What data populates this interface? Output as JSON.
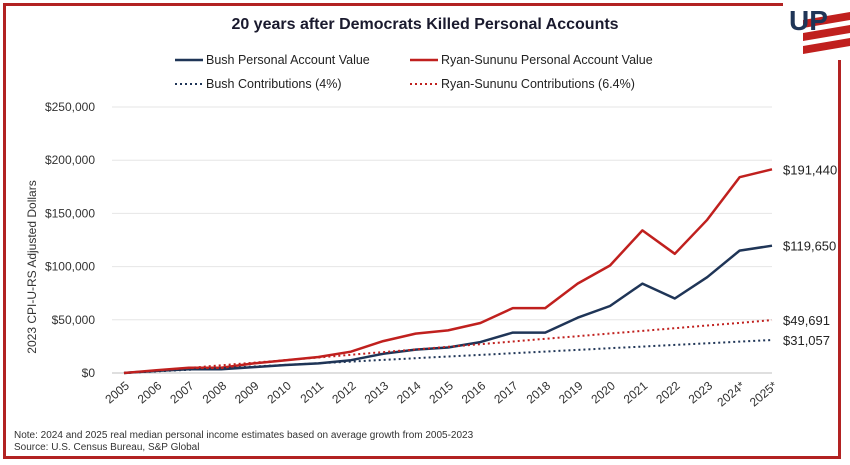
{
  "chart_data": {
    "type": "line",
    "title": "20 years after Democrats Killed Personal Accounts",
    "ylabel": "2023 CPI-U-RS Adjusted Dollars",
    "xlabel": "",
    "categories": [
      "2005",
      "2006",
      "2007",
      "2008",
      "2009",
      "2010",
      "2011",
      "2012",
      "2013",
      "2014",
      "2015",
      "2016",
      "2017",
      "2018",
      "2019",
      "2020",
      "2021",
      "2022",
      "2023",
      "2024*",
      "2025*"
    ],
    "ylim": [
      0,
      250000
    ],
    "yticks": [
      0,
      50000,
      100000,
      150000,
      200000,
      250000
    ],
    "ytick_labels": [
      "$0",
      "$50,000",
      "$100,000",
      "$150,000",
      "$200,000",
      "$250,000"
    ],
    "grid": true,
    "legend_position": "top",
    "series": [
      {
        "name": "Bush Personal Account Value",
        "style": "solid",
        "color": "#1f3557",
        "values": [
          0,
          2000,
          3500,
          3500,
          5500,
          7500,
          9000,
          12000,
          18000,
          22000,
          24000,
          29000,
          38000,
          38000,
          52000,
          63000,
          84000,
          70000,
          90000,
          115000,
          119650
        ],
        "end_label": "$119,650"
      },
      {
        "name": "Ryan-Sununu Personal Account Value",
        "style": "solid",
        "color": "#c0201e",
        "values": [
          0,
          2500,
          5000,
          5000,
          9000,
          12000,
          15000,
          20000,
          30000,
          37000,
          40000,
          47000,
          61000,
          61000,
          84000,
          101000,
          134000,
          112000,
          144000,
          184000,
          191440
        ],
        "end_label": "$191,440"
      },
      {
        "name": "Bush Contributions (4%)",
        "style": "dotted",
        "color": "#1f3557",
        "values": [
          0,
          1500,
          3000,
          4500,
          6100,
          7600,
          9100,
          10700,
          12300,
          13900,
          15500,
          17000,
          18600,
          20100,
          21700,
          23300,
          24800,
          26400,
          27900,
          29500,
          31057
        ],
        "end_label": "$31,057"
      },
      {
        "name": "Ryan-Sununu Contributions (6.4%)",
        "style": "dotted",
        "color": "#c0201e",
        "values": [
          0,
          2400,
          4800,
          7200,
          9700,
          12100,
          14600,
          17100,
          19600,
          22100,
          24600,
          27100,
          29600,
          32100,
          34600,
          37100,
          39600,
          42100,
          44600,
          47100,
          49691
        ],
        "end_label": "$49,691"
      }
    ]
  },
  "footnote": {
    "line1": "Note: 2024 and 2025 real median personal income estimates based on average growth from 2005-2023",
    "line2": "Source: U.S. Census Bureau, S&P Global"
  },
  "logo": {
    "text": "UP",
    "colors": {
      "blue": "#1f3557",
      "red": "#c0201e"
    }
  }
}
